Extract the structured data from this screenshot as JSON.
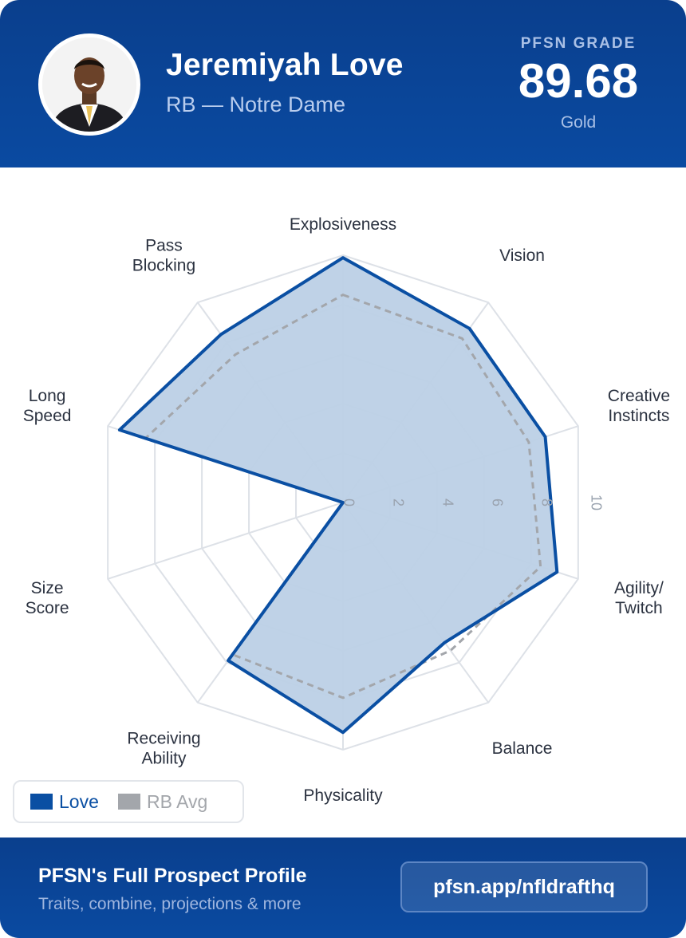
{
  "header": {
    "name": "Jeremiyah Love",
    "subtitle": "RB — Notre Dame",
    "grade_label": "PFSN GRADE",
    "grade_value": "89.68",
    "grade_tier": "Gold"
  },
  "legend": {
    "player_label": "Love",
    "avg_label": "RB Avg"
  },
  "footer": {
    "title": "PFSN's Full Prospect Profile",
    "subtitle": "Traits, combine, projections & more",
    "link": "pfsn.app/nfldrafthq"
  },
  "colors": {
    "player": "#0a4fa3",
    "player_fill": "#bcd0e6",
    "avg": "#a3a6ab",
    "grid": "#dde1e7"
  },
  "chart_data": {
    "type": "radar",
    "range": [
      0,
      10
    ],
    "ticks": [
      "0",
      "2",
      "4",
      "6",
      "8",
      "10"
    ],
    "axes": [
      [
        "Explosiveness"
      ],
      [
        "Vision"
      ],
      [
        "Creative",
        "Instincts"
      ],
      [
        "Agility/",
        "Twitch"
      ],
      [
        "Balance"
      ],
      [
        "Physicality"
      ],
      [
        "Receiving",
        "Ability"
      ],
      [
        "Size",
        "Score"
      ],
      [
        "Long",
        "Speed"
      ],
      [
        "Pass",
        "Blocking"
      ]
    ],
    "series": [
      {
        "name": "Love",
        "values": [
          9.9,
          8.7,
          8.6,
          9.1,
          7.0,
          9.3,
          7.9,
          0.0,
          9.5,
          8.4
        ]
      },
      {
        "name": "RB Avg",
        "values": [
          8.4,
          8.2,
          7.9,
          8.4,
          7.4,
          7.9,
          7.6,
          0.0,
          8.4,
          7.4
        ]
      }
    ]
  }
}
